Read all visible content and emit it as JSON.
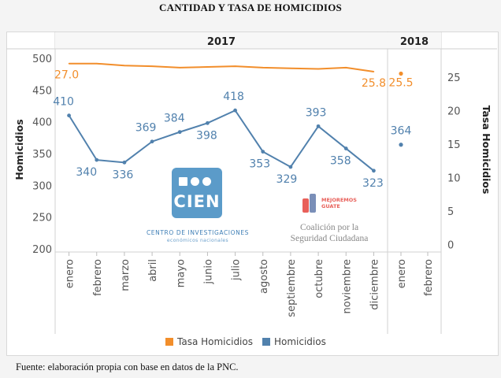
{
  "title": "CANTIDAD Y TASA DE HOMICIDIOS",
  "footnote": "Fuente: elaboración propia con base en datos de la PNC.",
  "colors": {
    "homicidios": "#5181ad",
    "tasa": "#f28e2b"
  },
  "chart_data": {
    "type": "line",
    "year_headers": [
      {
        "label": "2017",
        "categories": 12
      },
      {
        "label": "2018",
        "categories": 2
      }
    ],
    "categories": [
      "enero",
      "febrero",
      "marzo",
      "abril",
      "mayo",
      "junio",
      "julio",
      "agosto",
      "septiembre",
      "octubre",
      "noviembre",
      "diciembre",
      "enero",
      "febrero"
    ],
    "y_left": {
      "label": "Homicidios",
      "range": [
        195,
        515
      ],
      "ticks": [
        200,
        250,
        300,
        350,
        400,
        450,
        500
      ]
    },
    "y_right": {
      "label": "Tasa Homicidios",
      "range": [
        -1.1,
        29.2
      ],
      "ticks": [
        0,
        5,
        10,
        15,
        20,
        25
      ]
    },
    "series": [
      {
        "name": "Homicidios",
        "axis": "left",
        "values_2017": [
          410,
          340,
          336,
          369,
          384,
          398,
          418,
          353,
          329,
          393,
          358,
          323
        ],
        "values_2018": [
          364
        ],
        "labels_2017": [
          "410",
          "340",
          "336",
          "369",
          "384",
          "398",
          "418",
          "353",
          "329",
          "393",
          "358",
          "323"
        ],
        "labels_2018": [
          "364"
        ]
      },
      {
        "name": "Tasa Homicidios",
        "axis": "right",
        "values_2017": [
          27.0,
          27.0,
          26.7,
          26.6,
          26.4,
          26.5,
          26.6,
          26.4,
          26.3,
          26.2,
          26.4,
          25.8
        ],
        "values_2018": [
          25.5
        ],
        "labels_2017": [
          "27.0",
          "",
          "",
          "",
          "",
          "",
          "",
          "",
          "",
          "",
          "",
          "25.8"
        ],
        "labels_2018": [
          "25.5"
        ]
      }
    ],
    "legend": [
      "Tasa Homicidios",
      "Homicidios"
    ]
  },
  "watermarks": {
    "cien_logo": "CIEN",
    "cien_name": "CENTRO DE INVESTIGACIONES",
    "cien_sub": "económicos nacionales",
    "mejoremos_1": "MEJOREMOS",
    "mejoremos_2": "GUATE",
    "coalicion_1": "Coalición por la",
    "coalicion_2": "Seguridad Ciudadana"
  }
}
